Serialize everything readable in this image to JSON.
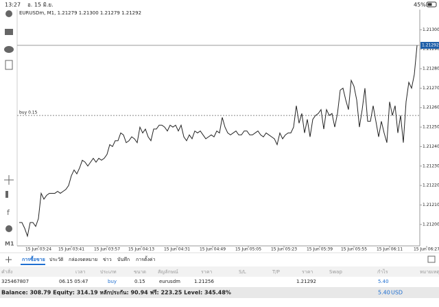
{
  "status_bar": {
    "time": "13:27",
    "date": "อ. 15 มิ.ย.",
    "battery": "45%"
  },
  "left_toolbar": {
    "timeframe": "M1"
  },
  "chart_data": {
    "type": "line",
    "title": "EURUSDm, M1, 1.21279 1.21300 1.21279 1.21292",
    "color": "#222222",
    "values": [
      1.21201,
      1.21201,
      1.21198,
      1.21194,
      1.21201,
      1.21201,
      1.21199,
      1.21203,
      1.21216,
      1.21213,
      1.21215,
      1.21216,
      1.21216,
      1.21216,
      1.21217,
      1.21216,
      1.21217,
      1.21218,
      1.2122,
      1.21225,
      1.21228,
      1.21226,
      1.21229,
      1.21233,
      1.21232,
      1.2123,
      1.21232,
      1.21234,
      1.21232,
      1.21234,
      1.21233,
      1.21234,
      1.21236,
      1.21241,
      1.2124,
      1.21243,
      1.21243,
      1.21247,
      1.21246,
      1.21242,
      1.21243,
      1.21245,
      1.21244,
      1.21242,
      1.2125,
      1.21247,
      1.21249,
      1.21245,
      1.21243,
      1.21249,
      1.21249,
      1.21251,
      1.21251,
      1.2125,
      1.21248,
      1.21251,
      1.2125,
      1.21251,
      1.21248,
      1.21251,
      1.21245,
      1.21243,
      1.21246,
      1.21244,
      1.21248,
      1.21247,
      1.21248,
      1.21246,
      1.21244,
      1.21245,
      1.21246,
      1.21245,
      1.21248,
      1.21247,
      1.21255,
      1.2125,
      1.21247,
      1.21246,
      1.21247,
      1.21248,
      1.21246,
      1.21246,
      1.21248,
      1.21248,
      1.21246,
      1.21246,
      1.21247,
      1.21248,
      1.21246,
      1.21245,
      1.21247,
      1.21246,
      1.21245,
      1.21244,
      1.21241,
      1.21247,
      1.21244,
      1.21246,
      1.21247,
      1.21247,
      1.2125,
      1.21261,
      1.21252,
      1.21257,
      1.21247,
      1.21254,
      1.21245,
      1.21254,
      1.21256,
      1.21257,
      1.21259,
      1.21249,
      1.21259,
      1.21256,
      1.21257,
      1.2125,
      1.21257,
      1.21269,
      1.2127,
      1.21264,
      1.21259,
      1.21274,
      1.21271,
      1.21264,
      1.2125,
      1.21259,
      1.2127,
      1.21253,
      1.21253,
      1.21261,
      1.21253,
      1.21245,
      1.21253,
      1.21247,
      1.21242,
      1.21263,
      1.21256,
      1.21261,
      1.21247,
      1.21256,
      1.21242,
      1.21263,
      1.21273,
      1.2127,
      1.21277,
      1.21292
    ],
    "xlim": [
      0,
      145
    ],
    "xticks": [
      {
        "value": 7,
        "label": "15 Jun 03:24"
      },
      {
        "value": 19,
        "label": "15 Jun 03:41"
      },
      {
        "value": 32,
        "label": "15 Jun 03:57"
      },
      {
        "value": 44.5,
        "label": "15 Jun 04:13"
      },
      {
        "value": 57.5,
        "label": "15 Jun 04:31"
      },
      {
        "value": 70.5,
        "label": "15 Jun 04:49"
      },
      {
        "value": 83.5,
        "label": "15 Jun 05:05"
      },
      {
        "value": 96.5,
        "label": "15 Jun 05:23"
      },
      {
        "value": 109.5,
        "label": "15 Jun 05:39"
      },
      {
        "value": 122,
        "label": "15 Jun 05:55"
      },
      {
        "value": 135,
        "label": "15 Jun 06:11"
      },
      {
        "value": 148.5,
        "label": "15 Jun 06:27"
      }
    ],
    "ylim": [
      1.21189,
      1.2131
    ],
    "yticks": [
      {
        "value": 1.212,
        "label": "1.21200"
      },
      {
        "value": 1.2121,
        "label": "1.21210"
      },
      {
        "value": 1.2122,
        "label": "1.21220"
      },
      {
        "value": 1.2123,
        "label": "1.21230"
      },
      {
        "value": 1.2124,
        "label": "1.21240"
      },
      {
        "value": 1.2125,
        "label": "1.21250"
      },
      {
        "value": 1.2126,
        "label": "1.21260"
      },
      {
        "value": 1.2127,
        "label": "1.21270"
      },
      {
        "value": 1.2128,
        "label": "1.21280"
      },
      {
        "value": 1.2129,
        "label": "1.21290"
      },
      {
        "value": 1.213,
        "label": "1.21300"
      }
    ],
    "current_price": {
      "value": 1.21292,
      "label": "1.21292",
      "color": "#1f5fa8"
    },
    "order_line": {
      "price": 1.21256,
      "text": "buy 0.15"
    }
  },
  "tabs": [
    "การซื้อขาย",
    "ประวัติ",
    "กล่องจดหมาย",
    "ข่าว",
    "บันทึก",
    "การตั้งค่า"
  ],
  "table": {
    "columns": [
      "คำสั่ง",
      "เวลา",
      "ประเภท",
      "ขนาด",
      "สัญลักษณ์",
      "ราคา",
      "S/L",
      "T/P",
      "ราคา",
      "Swap",
      "กำไร",
      "หมายเหตุ"
    ],
    "row": {
      "order": "325467807",
      "time": "06.15 05:47",
      "type": "buy",
      "size": "0.15",
      "symbol": "eurusdm",
      "open_price": "1.21256",
      "current_price": "1.21292",
      "profit": "5.40"
    }
  },
  "footer": {
    "summary": "Balance: 308.79 Equity: 314.19 หลักประกัน: 90.94 ฟรี: 223.25 Level: 345.48%",
    "total_profit": "5.40",
    "currency": "USD"
  }
}
